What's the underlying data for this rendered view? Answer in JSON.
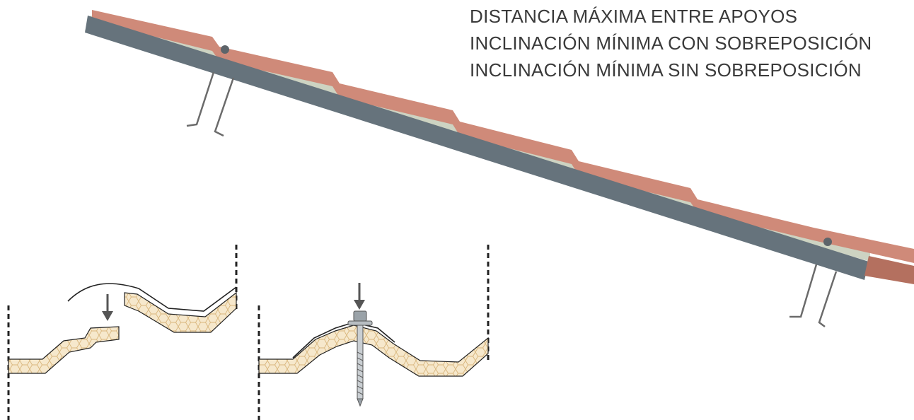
{
  "labels": [
    "DISTANCIA MÁXIMA ENTRE APOYOS",
    "INCLINACIÓN MÍNIMA CON SOBREPOSICIÓN",
    "INCLINACIÓN MÍNIMA SIN SOBREPOSICIÓN"
  ],
  "colors": {
    "panel_base": "#66737c",
    "panel_top": "#cf8a79",
    "panel_core": "#cdd3c2",
    "panel_end": "#b4705f",
    "bracket": "#6b6b6b",
    "insulation": "#f6e8cc",
    "cell_line": "#d9b67c",
    "text": "#3a3a3a"
  }
}
